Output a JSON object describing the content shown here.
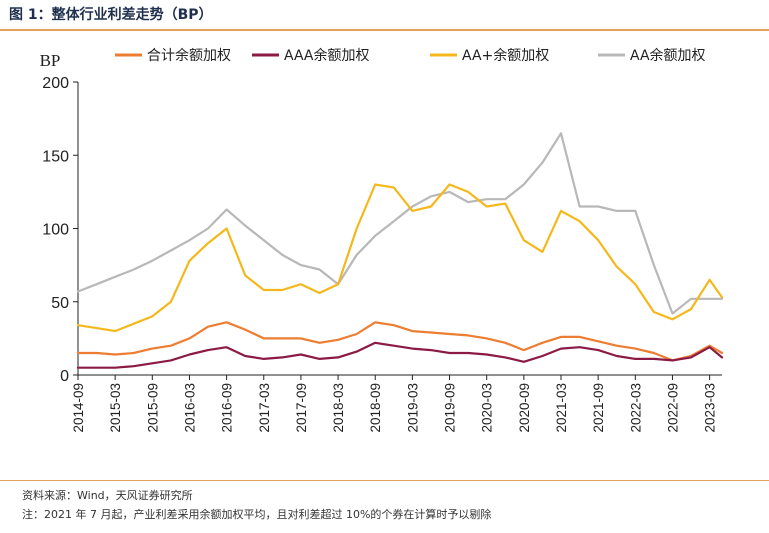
{
  "figure": {
    "title": "图 1：整体行业利差走势（BP）",
    "source": "资料来源：Wind，天风证券研究所",
    "note": "注：2021 年 7 月起，产业利差采用余额加权平均，且对利差超过 10%的个券在计算时予以剔除"
  },
  "colors": {
    "rule": "#e3a15a",
    "axis": "#222222"
  },
  "chart_data": {
    "type": "line",
    "unit_label": "BP",
    "ylim": [
      0,
      200
    ],
    "yticks": [
      0,
      50,
      100,
      150,
      200
    ],
    "xlim": [
      "2014-09",
      "2023-05"
    ],
    "xticks": [
      "2014-09",
      "2015-03",
      "2015-09",
      "2016-03",
      "2016-09",
      "2017-03",
      "2017-09",
      "2018-03",
      "2018-09",
      "2019-03",
      "2019-09",
      "2020-03",
      "2020-09",
      "2021-03",
      "2021-09",
      "2022-03",
      "2022-09",
      "2023-03"
    ],
    "grid": false,
    "legend_position": "top",
    "x": [
      "2014-09",
      "2014-12",
      "2015-03",
      "2015-06",
      "2015-09",
      "2015-12",
      "2016-03",
      "2016-06",
      "2016-09",
      "2016-12",
      "2017-03",
      "2017-06",
      "2017-09",
      "2017-12",
      "2018-03",
      "2018-06",
      "2018-09",
      "2018-12",
      "2019-03",
      "2019-06",
      "2019-09",
      "2019-12",
      "2020-03",
      "2020-06",
      "2020-09",
      "2020-12",
      "2021-03",
      "2021-06",
      "2021-09",
      "2021-12",
      "2022-03",
      "2022-06",
      "2022-09",
      "2022-12",
      "2023-03",
      "2023-05"
    ],
    "series": [
      {
        "name": "合计余额加权",
        "color": "#ed7d31",
        "values": [
          15,
          15,
          14,
          15,
          18,
          20,
          25,
          33,
          36,
          31,
          25,
          25,
          25,
          22,
          24,
          28,
          36,
          34,
          30,
          29,
          28,
          27,
          25,
          22,
          17,
          22,
          26,
          26,
          23,
          20,
          18,
          15,
          10,
          13,
          20,
          15
        ]
      },
      {
        "name": "AAA余额加权",
        "color": "#8b1a45",
        "values": [
          5,
          5,
          5,
          6,
          8,
          10,
          14,
          17,
          19,
          13,
          11,
          12,
          14,
          11,
          12,
          16,
          22,
          20,
          18,
          17,
          15,
          15,
          14,
          12,
          9,
          13,
          18,
          19,
          17,
          13,
          11,
          11,
          10,
          12,
          19,
          12
        ]
      },
      {
        "name": "AA+余额加权",
        "color": "#f5b81c",
        "values": [
          34,
          32,
          30,
          35,
          40,
          50,
          78,
          90,
          100,
          68,
          58,
          58,
          62,
          56,
          62,
          100,
          130,
          128,
          112,
          115,
          130,
          125,
          115,
          117,
          92,
          84,
          112,
          105,
          92,
          74,
          62,
          43,
          38,
          45,
          65,
          53
        ]
      },
      {
        "name": "AA余额加权",
        "color": "#b8b8b8",
        "values": [
          57,
          62,
          67,
          72,
          78,
          85,
          92,
          100,
          113,
          102,
          92,
          82,
          75,
          72,
          62,
          82,
          95,
          105,
          115,
          122,
          125,
          118,
          120,
          120,
          130,
          145,
          165,
          115,
          115,
          112,
          112,
          75,
          42,
          52,
          52,
          52
        ]
      }
    ]
  }
}
